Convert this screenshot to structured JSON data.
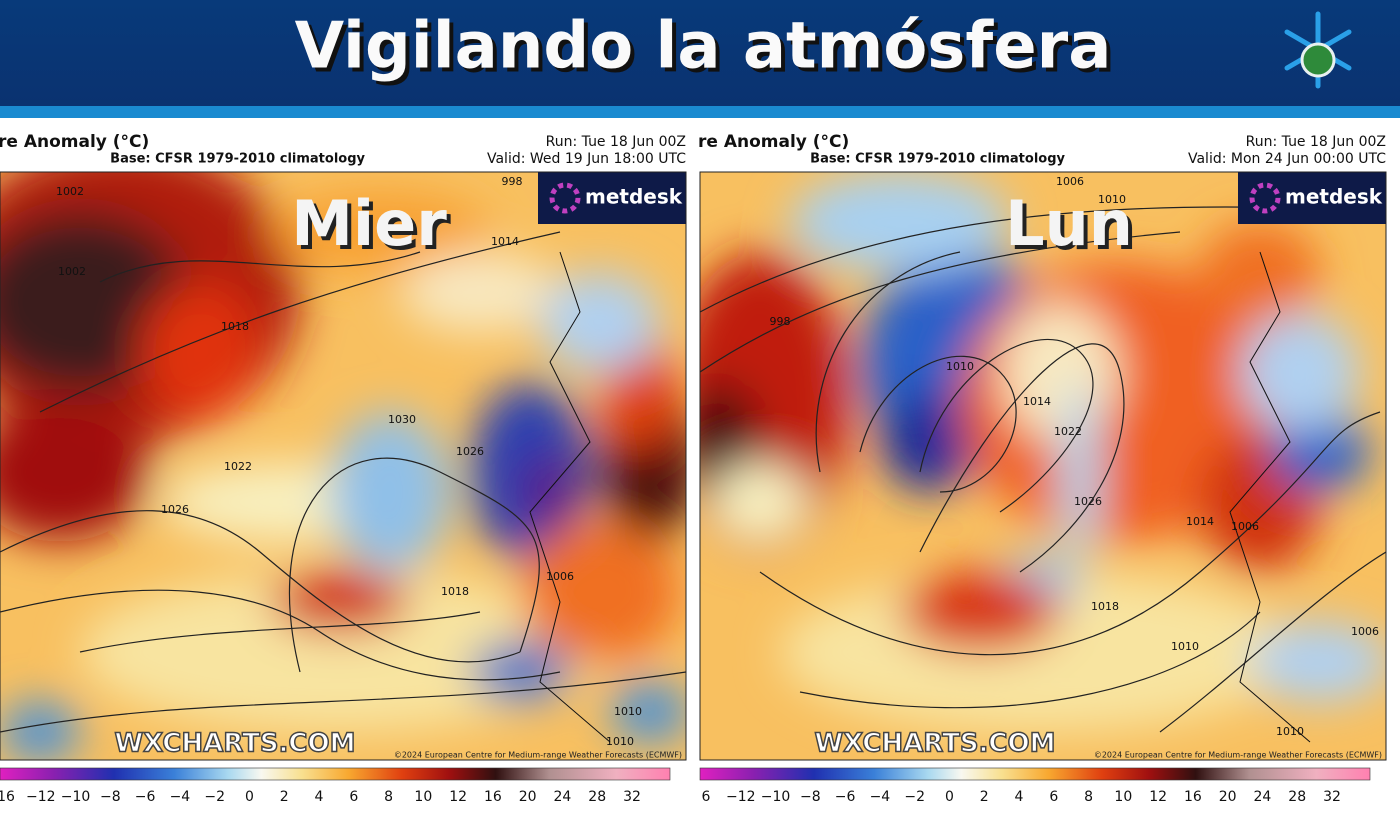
{
  "header": {
    "title": "Vigilando la atmósfera"
  },
  "panels": [
    {
      "title": "re Anomaly (°C)",
      "base": "Base: CFSR 1979-2010 climatology",
      "run": "Run: Tue 18 Jun 00Z",
      "valid": "Valid: Wed 19 Jun 18:00 UTC",
      "day": "Mier",
      "logo": "metdesk",
      "watermark": "WXCHARTS.COM",
      "copyright": "©2024 European Centre for Medium-range Weather Forecasts (ECMWF)",
      "isobar_labels": [
        "1002",
        "1002",
        "998",
        "1014",
        "1018",
        "1030",
        "1026",
        "1022",
        "1026",
        "1018",
        "1006",
        "1010",
        "1010"
      ],
      "colorbar_labels": [
        "16",
        "−12",
        "−10",
        "−8",
        "−6",
        "−4",
        "−2",
        "0",
        "2",
        "4",
        "6",
        "8",
        "10",
        "12",
        "16",
        "20",
        "24",
        "28",
        "32"
      ]
    },
    {
      "title": "re Anomaly (°C)",
      "base": "Base: CFSR 1979-2010 climatology",
      "run": "Run: Tue 18 Jun 00Z",
      "valid": "Valid: Mon 24 Jun 00:00 UTC",
      "day": "Lun",
      "logo": "metdesk",
      "watermark": "WXCHARTS.COM",
      "copyright": "©2024 European Centre for Medium-range Weather Forecasts (ECMWF)",
      "isobar_labels": [
        "1006",
        "1010",
        "998",
        "1010",
        "1014",
        "1022",
        "1026",
        "1014",
        "1006",
        "1018",
        "1010",
        "1010",
        "1006"
      ],
      "colorbar_labels": [
        "6",
        "−12",
        "−10",
        "−8",
        "−6",
        "−4",
        "−2",
        "0",
        "2",
        "4",
        "6",
        "8",
        "10",
        "12",
        "16",
        "20",
        "24",
        "28",
        "32"
      ]
    }
  ]
}
